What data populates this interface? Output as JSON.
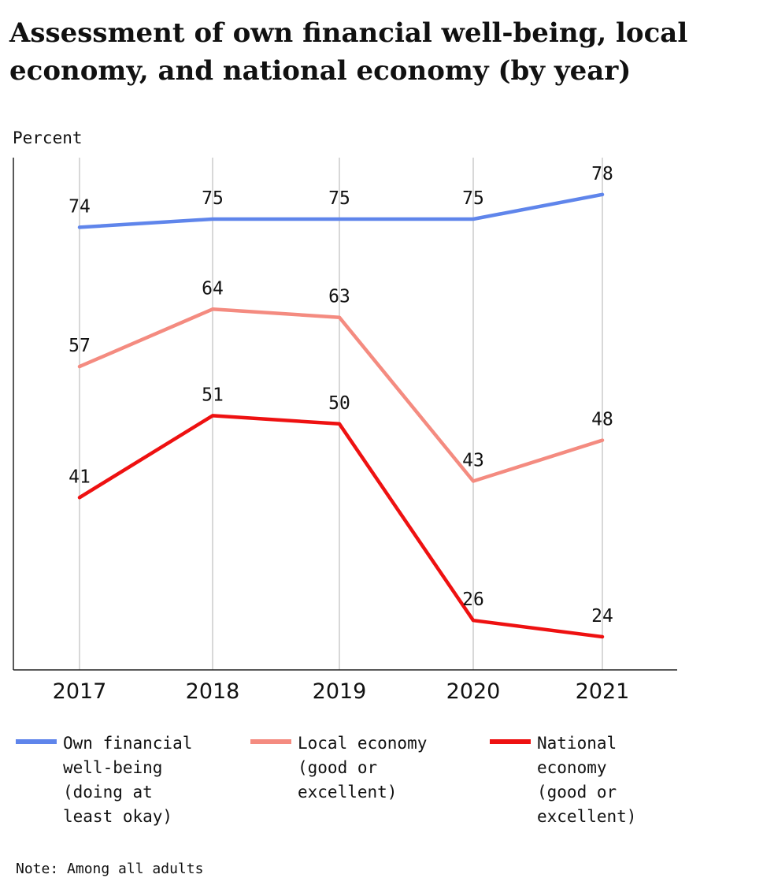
{
  "title": "Assessment of own financial well-being, local economy, and national economy (by year)",
  "note": "Note: Among all adults",
  "colors": {
    "own": "#5f85eb",
    "local": "#f48b80",
    "national": "#ee1111",
    "grid": "#cccccc",
    "axis": "#222222"
  },
  "chart_data": {
    "type": "line",
    "title": "Assessment of own financial well-being, local economy, and national economy (by year)",
    "ylabel": "Percent",
    "xlabel": "",
    "categories": [
      "2017",
      "2018",
      "2019",
      "2020",
      "2021"
    ],
    "series": [
      {
        "name": "Own financial well-being (doing at least okay)",
        "key": "own",
        "values": [
          74,
          75,
          75,
          75,
          78
        ]
      },
      {
        "name": "Local economy (good or excellent)",
        "key": "local",
        "values": [
          57,
          64,
          63,
          43,
          48
        ]
      },
      {
        "name": "National economy (good or excellent)",
        "key": "national",
        "values": [
          41,
          51,
          50,
          26,
          24
        ]
      }
    ],
    "ylim": [
      20,
      85
    ],
    "grid": "vertical",
    "legend": "bottom"
  },
  "legend": [
    {
      "key": "own",
      "label": "Own financial\nwell-being\n(doing at\nleast okay)"
    },
    {
      "key": "local",
      "label": "Local economy\n(good or\nexcellent)"
    },
    {
      "key": "national",
      "label": "National\neconomy\n(good or\nexcellent)"
    }
  ]
}
